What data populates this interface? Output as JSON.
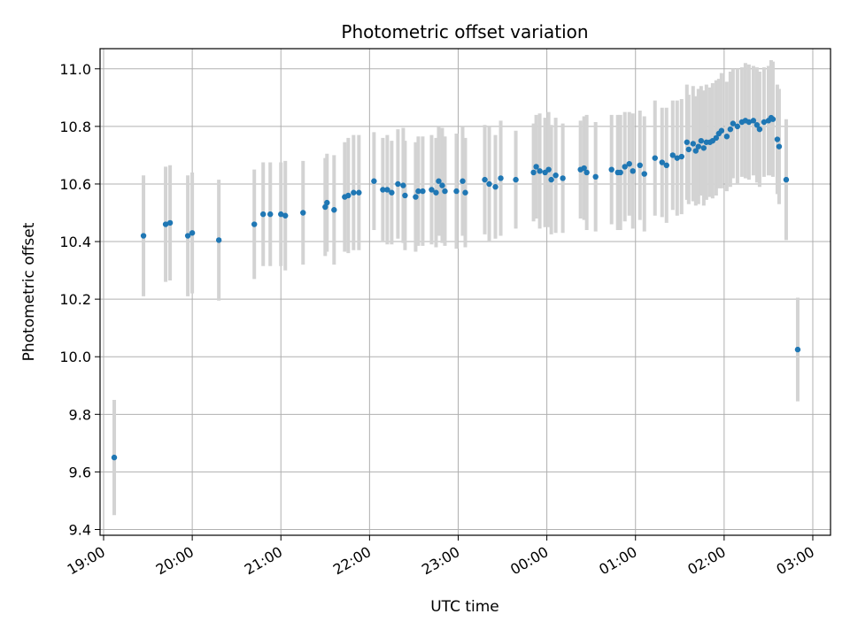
{
  "chart_data": {
    "type": "scatter",
    "title": "Photometric offset variation",
    "xlabel": "UTC time",
    "ylabel": "Photometric offset",
    "x_unit": "hour",
    "x_tick_values": [
      19,
      20,
      21,
      22,
      23,
      24,
      25,
      26,
      27
    ],
    "x_tick_labels": [
      "19:00",
      "20:00",
      "21:00",
      "22:00",
      "23:00",
      "00:00",
      "01:00",
      "02:00",
      "03:00"
    ],
    "xlim": [
      18.96,
      27.2
    ],
    "y_tick_values": [
      9.4,
      9.6,
      9.8,
      10.0,
      10.2,
      10.4,
      10.6,
      10.8,
      11.0
    ],
    "y_tick_labels": [
      "9.4",
      "9.6",
      "9.8",
      "10.0",
      "10.2",
      "10.4",
      "10.6",
      "10.8",
      "11.0"
    ],
    "ylim": [
      9.38,
      11.07
    ],
    "grid": true,
    "colors": {
      "point": "#1f77b4",
      "errorbar": "#d3d3d3",
      "grid": "#b0b0b0"
    },
    "series": [
      {
        "points": [
          [
            19.12,
            9.65,
            0.2
          ],
          [
            19.45,
            10.42,
            0.21
          ],
          [
            19.7,
            10.46,
            0.2
          ],
          [
            19.75,
            10.465,
            0.2
          ],
          [
            19.95,
            10.42,
            0.21
          ],
          [
            20.0,
            10.43,
            0.21
          ],
          [
            20.3,
            10.405,
            0.21
          ],
          [
            20.7,
            10.46,
            0.19
          ],
          [
            20.8,
            10.495,
            0.18
          ],
          [
            20.88,
            10.495,
            0.18
          ],
          [
            21.0,
            10.495,
            0.18
          ],
          [
            21.05,
            10.49,
            0.19
          ],
          [
            21.25,
            10.5,
            0.18
          ],
          [
            21.5,
            10.52,
            0.17
          ],
          [
            21.52,
            10.535,
            0.17
          ],
          [
            21.6,
            10.51,
            0.19
          ],
          [
            21.72,
            10.555,
            0.19
          ],
          [
            21.76,
            10.56,
            0.2
          ],
          [
            21.82,
            10.57,
            0.2
          ],
          [
            21.88,
            10.57,
            0.2
          ],
          [
            22.05,
            10.61,
            0.17
          ],
          [
            22.15,
            10.58,
            0.18
          ],
          [
            22.2,
            10.58,
            0.19
          ],
          [
            22.25,
            10.57,
            0.18
          ],
          [
            22.32,
            10.6,
            0.19
          ],
          [
            22.38,
            10.595,
            0.2
          ],
          [
            22.4,
            10.56,
            0.19
          ],
          [
            22.52,
            10.555,
            0.19
          ],
          [
            22.55,
            10.575,
            0.19
          ],
          [
            22.6,
            10.575,
            0.19
          ],
          [
            22.7,
            10.58,
            0.19
          ],
          [
            22.75,
            10.57,
            0.19
          ],
          [
            22.78,
            10.61,
            0.19
          ],
          [
            22.82,
            10.595,
            0.2
          ],
          [
            22.85,
            10.575,
            0.19
          ],
          [
            22.98,
            10.575,
            0.2
          ],
          [
            23.05,
            10.61,
            0.19
          ],
          [
            23.08,
            10.57,
            0.19
          ],
          [
            23.3,
            10.615,
            0.19
          ],
          [
            23.35,
            10.6,
            0.2
          ],
          [
            23.42,
            10.59,
            0.18
          ],
          [
            23.48,
            10.62,
            0.2
          ],
          [
            23.65,
            10.615,
            0.17
          ],
          [
            23.85,
            10.64,
            0.17
          ],
          [
            23.88,
            10.66,
            0.18
          ],
          [
            23.92,
            10.645,
            0.2
          ],
          [
            23.98,
            10.64,
            0.19
          ],
          [
            24.02,
            10.65,
            0.2
          ],
          [
            24.05,
            10.615,
            0.19
          ],
          [
            24.1,
            10.63,
            0.2
          ],
          [
            24.18,
            10.62,
            0.19
          ],
          [
            24.38,
            10.65,
            0.17
          ],
          [
            24.42,
            10.655,
            0.18
          ],
          [
            24.45,
            10.64,
            0.2
          ],
          [
            24.55,
            10.625,
            0.19
          ],
          [
            24.73,
            10.65,
            0.19
          ],
          [
            24.8,
            10.64,
            0.2
          ],
          [
            24.83,
            10.64,
            0.2
          ],
          [
            24.88,
            10.66,
            0.19
          ],
          [
            24.93,
            10.67,
            0.18
          ],
          [
            24.97,
            10.645,
            0.2
          ],
          [
            25.05,
            10.665,
            0.19
          ],
          [
            25.1,
            10.635,
            0.2
          ],
          [
            25.22,
            10.69,
            0.2
          ],
          [
            25.3,
            10.675,
            0.19
          ],
          [
            25.35,
            10.665,
            0.2
          ],
          [
            25.42,
            10.7,
            0.19
          ],
          [
            25.47,
            10.69,
            0.2
          ],
          [
            25.52,
            10.695,
            0.2
          ],
          [
            25.58,
            10.745,
            0.2
          ],
          [
            25.6,
            10.72,
            0.19
          ],
          [
            25.65,
            10.74,
            0.2
          ],
          [
            25.68,
            10.715,
            0.19
          ],
          [
            25.71,
            10.73,
            0.2
          ],
          [
            25.74,
            10.75,
            0.19
          ],
          [
            25.77,
            10.725,
            0.2
          ],
          [
            25.8,
            10.745,
            0.2
          ],
          [
            25.84,
            10.745,
            0.19
          ],
          [
            25.87,
            10.75,
            0.2
          ],
          [
            25.91,
            10.76,
            0.2
          ],
          [
            25.94,
            10.775,
            0.19
          ],
          [
            25.97,
            10.785,
            0.2
          ],
          [
            26.03,
            10.765,
            0.19
          ],
          [
            26.07,
            10.79,
            0.2
          ],
          [
            26.1,
            10.81,
            0.19
          ],
          [
            26.15,
            10.8,
            0.2
          ],
          [
            26.2,
            10.815,
            0.19
          ],
          [
            26.24,
            10.82,
            0.2
          ],
          [
            26.28,
            10.815,
            0.2
          ],
          [
            26.33,
            10.82,
            0.19
          ],
          [
            26.37,
            10.805,
            0.2
          ],
          [
            26.4,
            10.79,
            0.2
          ],
          [
            26.45,
            10.815,
            0.19
          ],
          [
            26.5,
            10.82,
            0.19
          ],
          [
            26.53,
            10.83,
            0.2
          ],
          [
            26.55,
            10.825,
            0.2
          ],
          [
            26.6,
            10.755,
            0.19
          ],
          [
            26.62,
            10.73,
            0.2
          ],
          [
            26.7,
            10.615,
            0.21
          ],
          [
            26.83,
            10.025,
            0.18
          ]
        ]
      }
    ]
  }
}
